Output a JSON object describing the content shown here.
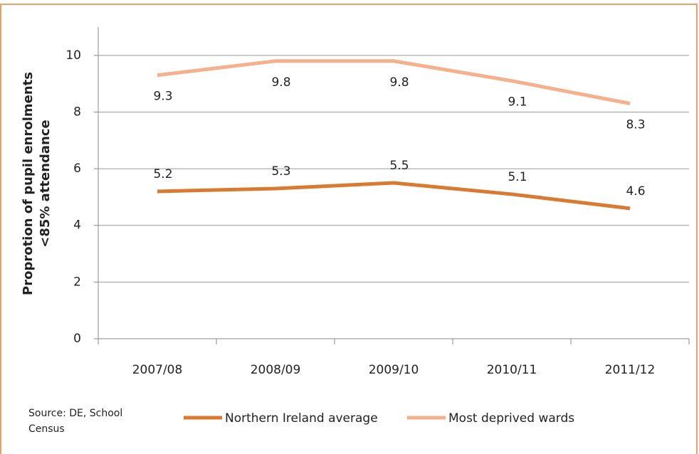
{
  "chart_data": {
    "type": "line",
    "y_label": [
      "Proprotion of pupil enrolments",
      "<85% attendance"
    ],
    "source": "Source: DE, School Census",
    "categories": [
      "2007/08",
      "2008/09",
      "2009/10",
      "2010/11",
      "2011/12"
    ],
    "series": [
      {
        "name": "Northern Ireland average",
        "color": "#d97a30",
        "values": [
          5.2,
          5.3,
          5.5,
          5.1,
          4.6
        ],
        "label_side": "above"
      },
      {
        "name": "Most deprived wards",
        "color": "#f5b08c",
        "values": [
          9.3,
          9.8,
          9.8,
          9.1,
          8.3
        ],
        "label_side": "below"
      }
    ],
    "ylim": [
      0,
      11
    ],
    "yticks": [
      0,
      2,
      4,
      6,
      8,
      10
    ],
    "grid": true,
    "legend": "bottom"
  }
}
